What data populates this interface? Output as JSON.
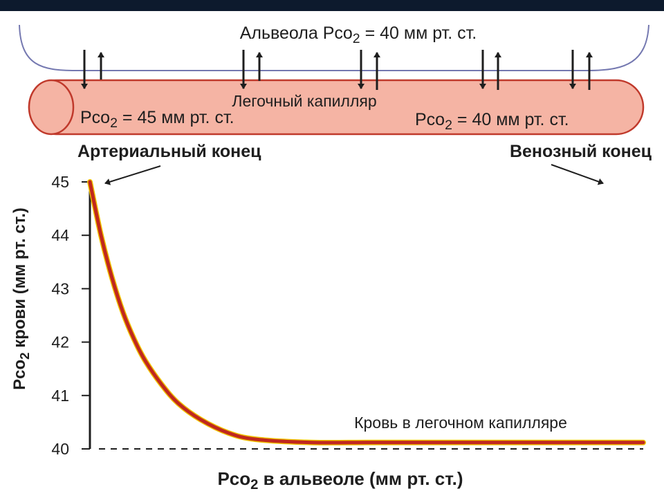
{
  "colors": {
    "top_bar": "#0d1a2d",
    "alveolus_line": "#7478b0",
    "capillary_fill": "#f5b4a4",
    "capillary_edge": "#c0392b",
    "curve": "#c0281e",
    "curve_edge": "#f0c000",
    "text": "#1e1e1e"
  },
  "alveolus": {
    "label_main": "Альвеола Pco",
    "label_sub": "2",
    "label_value": " = 40 мм рт. ст."
  },
  "capillary": {
    "name": "Легочный капилляр",
    "left_main": "Pco",
    "left_sub": "2",
    "left_value": " = 45 мм рт. ст.",
    "right_main": "Pco",
    "right_sub": "2",
    "right_value": " = 40 мм рт. ст."
  },
  "ends": {
    "arterial": "Артериальный конец",
    "venous": "Венозный конец"
  },
  "chart_data": {
    "type": "line",
    "title": "",
    "ylabel_main": "Pco",
    "ylabel_sub": "2",
    "ylabel_rest": " крови (мм рт. ст.)",
    "xlabel_main": "Pco",
    "xlabel_sub": "2",
    "xlabel_rest": " в альвеоле (мм рт. ст.)",
    "ylim": [
      40,
      45
    ],
    "yticks": [
      "40",
      "41",
      "42",
      "43",
      "44",
      "45"
    ],
    "x_ticks_shown": false,
    "reference_line": {
      "y": 40,
      "style": "dashed"
    },
    "series": [
      {
        "name": "Кровь в легочном капилляре",
        "x": [
          0,
          0.02,
          0.04,
          0.06,
          0.08,
          0.1,
          0.13,
          0.16,
          0.2,
          0.25,
          0.3,
          0.4,
          0.5,
          0.6,
          0.7,
          0.8,
          0.9,
          1.0
        ],
        "values": [
          45,
          44.0,
          43.2,
          42.55,
          42.05,
          41.65,
          41.2,
          40.85,
          40.55,
          40.3,
          40.18,
          40.12,
          40.12,
          40.12,
          40.12,
          40.12,
          40.12,
          40.12
        ]
      }
    ]
  }
}
